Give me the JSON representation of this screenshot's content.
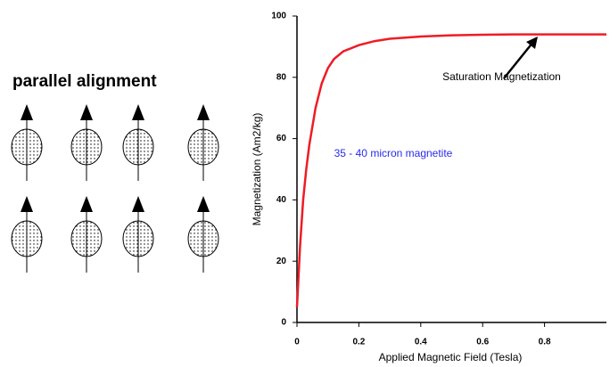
{
  "diagram": {
    "title": "parallel alignment"
  },
  "chart_data": {
    "type": "line",
    "x_label": "Applied Magnetic Field (Tesla)",
    "y_label": "Magnetization (Am2/kg)",
    "x": [
      0,
      0.005,
      0.01,
      0.02,
      0.03,
      0.04,
      0.06,
      0.08,
      0.1,
      0.12,
      0.15,
      0.2,
      0.25,
      0.3,
      0.4,
      0.5,
      0.6,
      0.7,
      0.8,
      0.9,
      1.0
    ],
    "values": [
      5,
      15,
      25,
      40,
      50,
      58,
      70,
      78,
      83,
      86,
      88.5,
      90.5,
      91.8,
      92.6,
      93.3,
      93.7,
      93.9,
      94,
      94,
      94,
      94
    ],
    "color": "#ee1c25",
    "xlim": [
      0,
      1
    ],
    "xticks": [
      0,
      0.2,
      0.4,
      0.6,
      0.8
    ],
    "ylim": [
      0,
      100
    ],
    "yticks": [
      0,
      20,
      40,
      60,
      80,
      100
    ],
    "grid": false,
    "annotations": [
      {
        "text": "Saturation Magnetization",
        "x": 0.47,
        "y": 80,
        "color": "#000000"
      },
      {
        "text": "35 - 40 micron magnetite",
        "x": 0.12,
        "y": 55,
        "color": "#2a2aee"
      }
    ]
  }
}
